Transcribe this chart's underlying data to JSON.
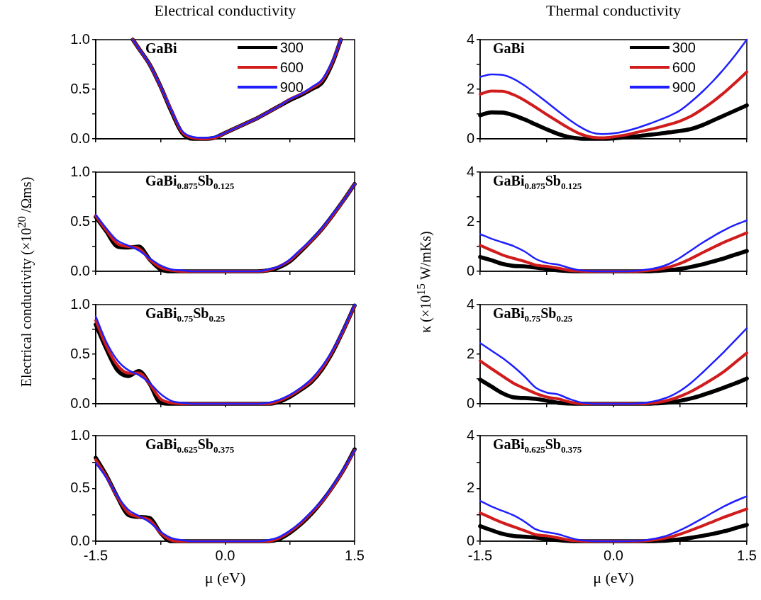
{
  "chart_data": [
    {
      "type": "line",
      "title": "Electrical conductivity",
      "annotations": [
        "GaBi"
      ],
      "legend": "top right",
      "marker": "none",
      "line_style": "solid",
      "grid": false,
      "tick_labels": "y",
      "xlim": [
        -1.5,
        1.5
      ],
      "xticks": [
        {
          "value": -1.5,
          "label": null
        },
        {
          "value": -0.75,
          "label": null
        },
        {
          "value": 0,
          "label": null
        },
        {
          "value": 0.75,
          "label": null
        },
        {
          "value": 1.5,
          "label": null
        }
      ],
      "ylim": [
        0,
        1
      ],
      "yticks": [
        {
          "value": 0,
          "label": "0.0"
        },
        {
          "value": 0.25,
          "label": null
        },
        {
          "value": 0.5,
          "label": "0.5"
        },
        {
          "value": 0.75,
          "label": null
        },
        {
          "value": 1,
          "label": "1.0"
        }
      ],
      "x": [
        -1.07,
        -1,
        -0.875,
        -0.75,
        -0.625,
        -0.5,
        -0.375,
        -0.25,
        -0.125,
        0,
        0.125,
        0.25,
        0.375,
        0.5,
        0.625,
        0.75,
        0.875,
        1,
        1.125,
        1.25,
        1.34
      ],
      "series": [
        {
          "name": "300",
          "color": "#000000",
          "values": [
            1.0,
            0.91,
            0.75,
            0.53,
            0.28,
            0.06,
            0,
            0,
            0.01,
            0.06,
            0.11,
            0.16,
            0.21,
            0.27,
            0.33,
            0.39,
            0.44,
            0.5,
            0.57,
            0.78,
            1.0
          ]
        },
        {
          "name": "600",
          "color": "#d01c1c",
          "values": [
            1.0,
            0.91,
            0.75,
            0.53,
            0.29,
            0.07,
            0.01,
            0,
            0.01,
            0.06,
            0.11,
            0.16,
            0.21,
            0.27,
            0.33,
            0.4,
            0.45,
            0.51,
            0.59,
            0.79,
            1.0
          ]
        },
        {
          "name": "900",
          "color": "#1f1fff",
          "values": [
            1.0,
            0.91,
            0.75,
            0.53,
            0.29,
            0.08,
            0.02,
            0.01,
            0.02,
            0.06,
            0.11,
            0.16,
            0.21,
            0.27,
            0.33,
            0.4,
            0.45,
            0.52,
            0.6,
            0.8,
            1.0
          ]
        }
      ]
    },
    {
      "type": "line",
      "title": "Thermal conductivity",
      "annotations": [
        "GaBi"
      ],
      "legend": "top right",
      "marker": "none",
      "line_style": "solid",
      "grid": false,
      "tick_labels": "y",
      "xlim": [
        -1.5,
        1.5
      ],
      "xticks": [
        {
          "value": -1.5,
          "label": null
        },
        {
          "value": -0.75,
          "label": null
        },
        {
          "value": 0,
          "label": null
        },
        {
          "value": 0.75,
          "label": null
        },
        {
          "value": 1.5,
          "label": null
        }
      ],
      "ylim": [
        0,
        4
      ],
      "yticks": [
        0,
        {
          "value": 1,
          "label": null
        },
        2,
        {
          "value": 3,
          "label": null
        },
        4
      ],
      "x": [
        -1.5,
        -1.375,
        -1.25,
        -1.125,
        -1,
        -0.875,
        -0.75,
        -0.625,
        -0.5,
        -0.375,
        -0.25,
        -0.125,
        0,
        0.125,
        0.25,
        0.375,
        0.5,
        0.625,
        0.75,
        0.875,
        1,
        1.125,
        1.25,
        1.375,
        1.5
      ],
      "series": [
        {
          "name": "300",
          "color": "#000000",
          "values": [
            0.95,
            1.07,
            1.06,
            0.95,
            0.78,
            0.58,
            0.38,
            0.2,
            0.07,
            0.01,
            0,
            0,
            0.02,
            0.06,
            0.1,
            0.15,
            0.2,
            0.26,
            0.32,
            0.4,
            0.55,
            0.75,
            0.95,
            1.15,
            1.35
          ]
        },
        {
          "name": "600",
          "color": "#d01c1c",
          "values": [
            1.8,
            1.93,
            1.92,
            1.78,
            1.55,
            1.27,
            0.98,
            0.7,
            0.43,
            0.2,
            0.07,
            0.04,
            0.08,
            0.15,
            0.25,
            0.35,
            0.46,
            0.58,
            0.72,
            0.92,
            1.2,
            1.52,
            1.88,
            2.28,
            2.7
          ]
        },
        {
          "name": "900",
          "color": "#1f1fff",
          "values": [
            2.5,
            2.6,
            2.58,
            2.42,
            2.15,
            1.82,
            1.48,
            1.12,
            0.78,
            0.48,
            0.26,
            0.19,
            0.22,
            0.3,
            0.42,
            0.57,
            0.74,
            0.92,
            1.15,
            1.5,
            1.9,
            2.35,
            2.85,
            3.4,
            4.0
          ]
        }
      ]
    },
    {
      "type": "line",
      "ylabel": "Electrical conductivity (×10$^{20}$ /Ωms)",
      "annotations": [
        "GaBi$_{0.875}$Sb$_{0.125}$"
      ],
      "marker": "none",
      "line_style": "solid",
      "grid": false,
      "tick_labels": "y",
      "xlim": [
        -1.5,
        1.5
      ],
      "xticks": [
        {
          "value": -1.5,
          "label": null
        },
        {
          "value": -0.75,
          "label": null
        },
        {
          "value": 0,
          "label": null
        },
        {
          "value": 0.75,
          "label": null
        },
        {
          "value": 1.5,
          "label": null
        }
      ],
      "ylim": [
        0,
        1
      ],
      "yticks": [
        {
          "value": 0,
          "label": "0.0"
        },
        {
          "value": 0.25,
          "label": null
        },
        {
          "value": 0.5,
          "label": "0.5"
        },
        {
          "value": 0.75,
          "label": null
        },
        {
          "value": 1,
          "label": "1.0"
        }
      ],
      "x": [
        -1.5,
        -1.375,
        -1.25,
        -1.125,
        -1,
        -0.875,
        -0.75,
        -0.625,
        -0.5,
        -0.375,
        -0.25,
        -0.125,
        0,
        0.125,
        0.25,
        0.375,
        0.5,
        0.625,
        0.75,
        0.875,
        1,
        1.125,
        1.25,
        1.375,
        1.5
      ],
      "series": [
        {
          "color": "#000000",
          "values": [
            0.55,
            0.4,
            0.25,
            0.24,
            0.25,
            0.12,
            0.02,
            0,
            0,
            0,
            0,
            0,
            0,
            0,
            0,
            0,
            0.01,
            0.04,
            0.1,
            0.2,
            0.31,
            0.43,
            0.57,
            0.72,
            0.88
          ]
        },
        {
          "color": "#d01c1c",
          "values": [
            0.56,
            0.41,
            0.28,
            0.25,
            0.23,
            0.12,
            0.04,
            0.01,
            0,
            0,
            0,
            0,
            0,
            0,
            0,
            0,
            0.01,
            0.05,
            0.11,
            0.21,
            0.31,
            0.43,
            0.57,
            0.72,
            0.88
          ]
        },
        {
          "color": "#1f1fff",
          "values": [
            0.57,
            0.43,
            0.31,
            0.26,
            0.21,
            0.13,
            0.06,
            0.02,
            0.01,
            0,
            0,
            0,
            0,
            0,
            0,
            0,
            0.02,
            0.05,
            0.12,
            0.22,
            0.32,
            0.44,
            0.58,
            0.72,
            0.88
          ]
        }
      ]
    },
    {
      "type": "line",
      "ylabel": "κ (×10$^{15}$ W/mKs)",
      "annotations": [
        "GaBi$_{0.875}$Sb$_{0.125}$"
      ],
      "marker": "none",
      "line_style": "solid",
      "grid": false,
      "tick_labels": "y",
      "xlim": [
        -1.5,
        1.5
      ],
      "xticks": [
        {
          "value": -1.5,
          "label": null
        },
        {
          "value": -0.75,
          "label": null
        },
        {
          "value": 0,
          "label": null
        },
        {
          "value": 0.75,
          "label": null
        },
        {
          "value": 1.5,
          "label": null
        }
      ],
      "ylim": [
        0,
        4
      ],
      "yticks": [
        0,
        {
          "value": 1,
          "label": null
        },
        2,
        {
          "value": 3,
          "label": null
        },
        4
      ],
      "x": [
        -1.5,
        -1.375,
        -1.25,
        -1.125,
        -1,
        -0.875,
        -0.75,
        -0.625,
        -0.5,
        -0.375,
        -0.25,
        -0.125,
        0,
        0.125,
        0.25,
        0.375,
        0.5,
        0.625,
        0.75,
        0.875,
        1,
        1.125,
        1.25,
        1.375,
        1.5
      ],
      "series": [
        {
          "color": "#000000",
          "values": [
            0.58,
            0.45,
            0.3,
            0.22,
            0.2,
            0.15,
            0.1,
            0.04,
            0.01,
            0,
            0,
            0,
            0,
            0,
            0,
            0,
            0.02,
            0.05,
            0.1,
            0.18,
            0.28,
            0.4,
            0.53,
            0.68,
            0.82
          ]
        },
        {
          "color": "#d01c1c",
          "values": [
            1.05,
            0.85,
            0.66,
            0.52,
            0.4,
            0.25,
            0.2,
            0.13,
            0.04,
            0.01,
            0,
            0,
            0,
            0,
            0,
            0.03,
            0.08,
            0.17,
            0.32,
            0.52,
            0.75,
            0.97,
            1.18,
            1.37,
            1.55
          ]
        },
        {
          "color": "#1f1fff",
          "values": [
            1.5,
            1.32,
            1.17,
            1.02,
            0.8,
            0.5,
            0.34,
            0.27,
            0.14,
            0.04,
            0.01,
            0,
            0,
            0,
            0.02,
            0.07,
            0.15,
            0.3,
            0.55,
            0.85,
            1.15,
            1.42,
            1.67,
            1.88,
            2.05
          ]
        }
      ]
    },
    {
      "type": "line",
      "annotations": [
        "GaBi$_{0.75}$Sb$_{0.25}$"
      ],
      "marker": "none",
      "line_style": "solid",
      "grid": false,
      "tick_labels": "y",
      "xlim": [
        -1.5,
        1.5
      ],
      "xticks": [
        {
          "value": -1.5,
          "label": null
        },
        {
          "value": -0.75,
          "label": null
        },
        {
          "value": 0,
          "label": null
        },
        {
          "value": 0.75,
          "label": null
        },
        {
          "value": 1.5,
          "label": null
        }
      ],
      "ylim": [
        0,
        1
      ],
      "yticks": [
        {
          "value": 0,
          "label": "0.0"
        },
        {
          "value": 0.25,
          "label": null
        },
        {
          "value": 0.5,
          "label": "0.5"
        },
        {
          "value": 0.75,
          "label": null
        },
        {
          "value": 1,
          "label": "1.0"
        }
      ],
      "x": [
        -1.5,
        -1.375,
        -1.25,
        -1.125,
        -1,
        -0.875,
        -0.75,
        -0.625,
        -0.5,
        -0.375,
        -0.25,
        -0.125,
        0,
        0.125,
        0.25,
        0.375,
        0.5,
        0.625,
        0.75,
        0.875,
        1,
        1.125,
        1.25,
        1.375,
        1.5
      ],
      "series": [
        {
          "color": "#000000",
          "values": [
            0.8,
            0.55,
            0.34,
            0.28,
            0.33,
            0.2,
            0.01,
            0,
            0,
            0,
            0,
            0,
            0,
            0,
            0,
            0,
            0,
            0.02,
            0.07,
            0.14,
            0.22,
            0.35,
            0.53,
            0.75,
            0.99
          ]
        },
        {
          "color": "#d01c1c",
          "values": [
            0.84,
            0.58,
            0.39,
            0.31,
            0.31,
            0.2,
            0.05,
            0.01,
            0,
            0,
            0,
            0,
            0,
            0,
            0,
            0,
            0,
            0.03,
            0.08,
            0.15,
            0.23,
            0.36,
            0.54,
            0.75,
            0.99
          ]
        },
        {
          "color": "#1f1fff",
          "values": [
            0.88,
            0.62,
            0.44,
            0.34,
            0.29,
            0.21,
            0.1,
            0.03,
            0.01,
            0,
            0,
            0,
            0,
            0,
            0,
            0,
            0.01,
            0.04,
            0.09,
            0.16,
            0.25,
            0.38,
            0.55,
            0.76,
            1.0
          ]
        }
      ]
    },
    {
      "type": "line",
      "annotations": [
        "GaBi$_{0.75}$Sb$_{0.25}$"
      ],
      "marker": "none",
      "line_style": "solid",
      "grid": false,
      "tick_labels": "y",
      "xlim": [
        -1.5,
        1.5
      ],
      "xticks": [
        {
          "value": -1.5,
          "label": null
        },
        {
          "value": -0.75,
          "label": null
        },
        {
          "value": 0,
          "label": null
        },
        {
          "value": 0.75,
          "label": null
        },
        {
          "value": 1.5,
          "label": null
        }
      ],
      "ylim": [
        0,
        4
      ],
      "yticks": [
        0,
        {
          "value": 1,
          "label": null
        },
        2,
        {
          "value": 3,
          "label": null
        },
        4
      ],
      "x": [
        -1.5,
        -1.375,
        -1.25,
        -1.125,
        -1,
        -0.875,
        -0.75,
        -0.625,
        -0.5,
        -0.375,
        -0.25,
        -0.125,
        0,
        0.125,
        0.25,
        0.375,
        0.5,
        0.625,
        0.75,
        0.875,
        1,
        1.125,
        1.25,
        1.375,
        1.5
      ],
      "series": [
        {
          "color": "#000000",
          "values": [
            0.97,
            0.7,
            0.43,
            0.26,
            0.23,
            0.2,
            0.12,
            0.04,
            0.01,
            0,
            0,
            0,
            0,
            0,
            0,
            0,
            0.02,
            0.05,
            0.12,
            0.22,
            0.35,
            0.5,
            0.66,
            0.83,
            1.02
          ]
        },
        {
          "color": "#d01c1c",
          "values": [
            1.73,
            1.42,
            1.12,
            0.83,
            0.62,
            0.42,
            0.27,
            0.2,
            0.08,
            0.01,
            0,
            0,
            0,
            0,
            0,
            0.01,
            0.06,
            0.15,
            0.3,
            0.5,
            0.75,
            1.02,
            1.32,
            1.68,
            2.05
          ]
        },
        {
          "color": "#1f1fff",
          "values": [
            2.45,
            2.15,
            1.85,
            1.5,
            1.1,
            0.65,
            0.45,
            0.38,
            0.2,
            0.06,
            0.01,
            0,
            0,
            0,
            0.01,
            0.05,
            0.14,
            0.28,
            0.52,
            0.85,
            1.25,
            1.68,
            2.12,
            2.58,
            3.05
          ]
        }
      ]
    },
    {
      "type": "line",
      "xlabel": "μ (eV)",
      "annotations": [
        "GaBi$_{0.625}$Sb$_{0.375}$"
      ],
      "marker": "none",
      "line_style": "solid",
      "grid": false,
      "xlim": [
        -1.5,
        1.5
      ],
      "xticks": [
        {
          "value": -1.5,
          "label": "-1.5"
        },
        {
          "value": -0.75,
          "label": null
        },
        {
          "value": 0,
          "label": "0.0"
        },
        {
          "value": 0.75,
          "label": null
        },
        {
          "value": 1.5,
          "label": "1.5"
        }
      ],
      "ylim": [
        0,
        1
      ],
      "yticks": [
        {
          "value": 0,
          "label": "0.0"
        },
        {
          "value": 0.25,
          "label": null
        },
        {
          "value": 0.5,
          "label": "0.5"
        },
        {
          "value": 0.75,
          "label": null
        },
        {
          "value": 1,
          "label": "1.0"
        }
      ],
      "x": [
        -1.5,
        -1.375,
        -1.25,
        -1.125,
        -1,
        -0.875,
        -0.75,
        -0.625,
        -0.5,
        -0.375,
        -0.25,
        -0.125,
        0,
        0.125,
        0.25,
        0.375,
        0.5,
        0.625,
        0.75,
        0.875,
        1,
        1.125,
        1.25,
        1.375,
        1.5
      ],
      "series": [
        {
          "color": "#000000",
          "values": [
            0.79,
            0.62,
            0.42,
            0.25,
            0.23,
            0.22,
            0.08,
            0,
            0,
            0,
            0,
            0,
            0,
            0,
            0,
            0,
            0,
            0.02,
            0.08,
            0.16,
            0.26,
            0.38,
            0.52,
            0.68,
            0.87
          ]
        },
        {
          "color": "#d01c1c",
          "values": [
            0.77,
            0.61,
            0.42,
            0.27,
            0.23,
            0.2,
            0.08,
            0.01,
            0,
            0,
            0,
            0,
            0,
            0,
            0,
            0,
            0,
            0.03,
            0.09,
            0.17,
            0.27,
            0.38,
            0.52,
            0.68,
            0.86
          ]
        },
        {
          "color": "#1f1fff",
          "values": [
            0.74,
            0.6,
            0.43,
            0.3,
            0.24,
            0.18,
            0.09,
            0.03,
            0.01,
            0,
            0,
            0,
            0,
            0,
            0,
            0,
            0.01,
            0.04,
            0.1,
            0.18,
            0.28,
            0.39,
            0.53,
            0.69,
            0.86
          ]
        }
      ]
    },
    {
      "type": "line",
      "xlabel": "μ (eV)",
      "annotations": [
        "GaBi$_{0.625}$Sb$_{0.375}$"
      ],
      "marker": "none",
      "line_style": "solid",
      "grid": false,
      "xlim": [
        -1.5,
        1.5
      ],
      "xticks": [
        {
          "value": -1.5,
          "label": "-1.5"
        },
        {
          "value": -0.75,
          "label": null
        },
        {
          "value": 0,
          "label": "0.0"
        },
        {
          "value": 0.75,
          "label": null
        },
        {
          "value": 1.5,
          "label": "1.5"
        }
      ],
      "ylim": [
        0,
        4
      ],
      "yticks": [
        0,
        {
          "value": 1,
          "label": null
        },
        2,
        {
          "value": 3,
          "label": null
        },
        4
      ],
      "x": [
        -1.5,
        -1.375,
        -1.25,
        -1.125,
        -1,
        -0.875,
        -0.75,
        -0.625,
        -0.5,
        -0.375,
        -0.25,
        -0.125,
        0,
        0.125,
        0.25,
        0.375,
        0.5,
        0.625,
        0.75,
        0.875,
        1,
        1.125,
        1.25,
        1.375,
        1.5
      ],
      "series": [
        {
          "color": "#000000",
          "values": [
            0.57,
            0.42,
            0.28,
            0.2,
            0.17,
            0.14,
            0.09,
            0.04,
            0.01,
            0,
            0,
            0,
            0,
            0,
            0,
            0,
            0.01,
            0.03,
            0.07,
            0.13,
            0.2,
            0.28,
            0.38,
            0.5,
            0.62
          ]
        },
        {
          "color": "#d01c1c",
          "values": [
            1.07,
            0.88,
            0.7,
            0.55,
            0.4,
            0.25,
            0.2,
            0.13,
            0.04,
            0.01,
            0,
            0,
            0,
            0,
            0,
            0.02,
            0.07,
            0.15,
            0.27,
            0.42,
            0.58,
            0.75,
            0.92,
            1.07,
            1.22
          ]
        },
        {
          "color": "#1f1fff",
          "values": [
            1.53,
            1.32,
            1.15,
            0.98,
            0.74,
            0.45,
            0.34,
            0.27,
            0.14,
            0.04,
            0.01,
            0,
            0,
            0,
            0.01,
            0.05,
            0.12,
            0.24,
            0.42,
            0.63,
            0.86,
            1.1,
            1.33,
            1.53,
            1.7
          ]
        }
      ]
    }
  ]
}
